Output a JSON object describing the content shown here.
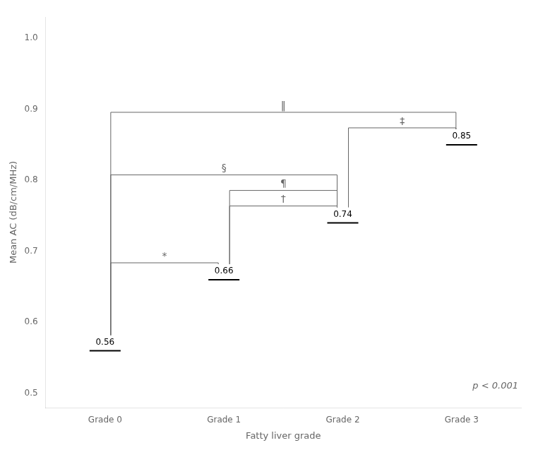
{
  "chart_data": {
    "type": "line",
    "categories": [
      "Grade 0",
      "Grade 1",
      "Grade 2",
      "Grade 3"
    ],
    "values": [
      0.56,
      0.66,
      0.74,
      0.85
    ],
    "color": "#000000",
    "marker": "line",
    "line_style": "none",
    "data_labels": true,
    "xlabel": "Fatty liver grade",
    "ylabel": "Mean AC (dB/cm/MHz)",
    "ylim": [
      0.48,
      1.03
    ],
    "yticks": [
      0.5,
      0.6,
      0.7,
      0.8,
      0.9,
      {
        "value": 1.0,
        "label": "1.0"
      }
    ],
    "grid": false,
    "annotations": [
      {
        "text": "*",
        "between": [
          "Grade 0",
          "Grade 1"
        ]
      },
      {
        "text": "†",
        "between": [
          "Grade 1",
          "Grade 2"
        ]
      },
      {
        "text": "‡",
        "between": [
          "Grade 2",
          "Grade 3"
        ]
      },
      {
        "text": "‖",
        "between": [
          "Grade 0",
          "Grade 3"
        ]
      },
      {
        "text": "§",
        "between": [
          "Grade 0",
          "Grade 2"
        ]
      },
      {
        "text": "¶",
        "between": [
          "Grade 1",
          "Grade 2"
        ]
      },
      {
        "text": "p < 0.001"
      }
    ]
  }
}
